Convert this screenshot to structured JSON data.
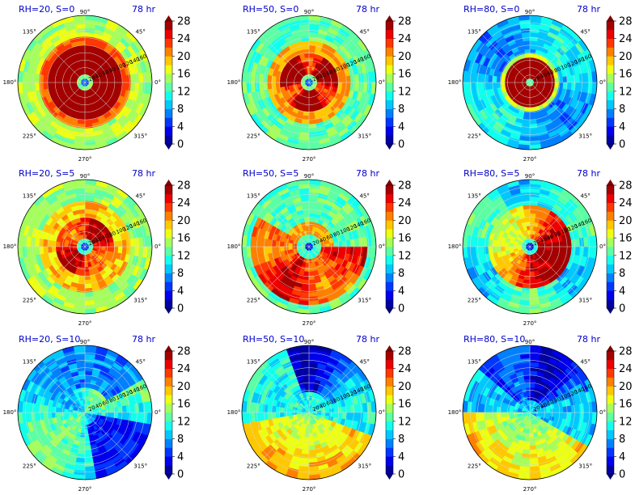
{
  "chart_data": {
    "type": "heatmap",
    "layout": {
      "rows": 3,
      "cols": 3
    },
    "time_label": "78 hr",
    "angle_ticks": [
      "0°",
      "45°",
      "90°",
      "135°",
      "180°",
      "225°",
      "270°",
      "315°"
    ],
    "radial_ticks": [
      20,
      40,
      60,
      80,
      100,
      120,
      140,
      160
    ],
    "colorbar": {
      "ticks": [
        0,
        4,
        8,
        12,
        16,
        20,
        24,
        28
      ],
      "range": [
        0,
        28
      ],
      "colormap": "jet",
      "extend": "both"
    },
    "panels": [
      {
        "title": "RH=20, S=0",
        "time": "78 hr"
      },
      {
        "title": "RH=50, S=0",
        "time": "78 hr"
      },
      {
        "title": "RH=80, S=0",
        "time": "78 hr"
      },
      {
        "title": "RH=20, S=5",
        "time": "78 hr"
      },
      {
        "title": "RH=50, S=5",
        "time": "78 hr"
      },
      {
        "title": "RH=80, S=5",
        "time": "78 hr"
      },
      {
        "title": "RH=20, S=10",
        "time": "78 hr"
      },
      {
        "title": "RH=50, S=10",
        "time": "78 hr"
      },
      {
        "title": "RH=80, S=10",
        "time": "78 hr"
      }
    ]
  }
}
